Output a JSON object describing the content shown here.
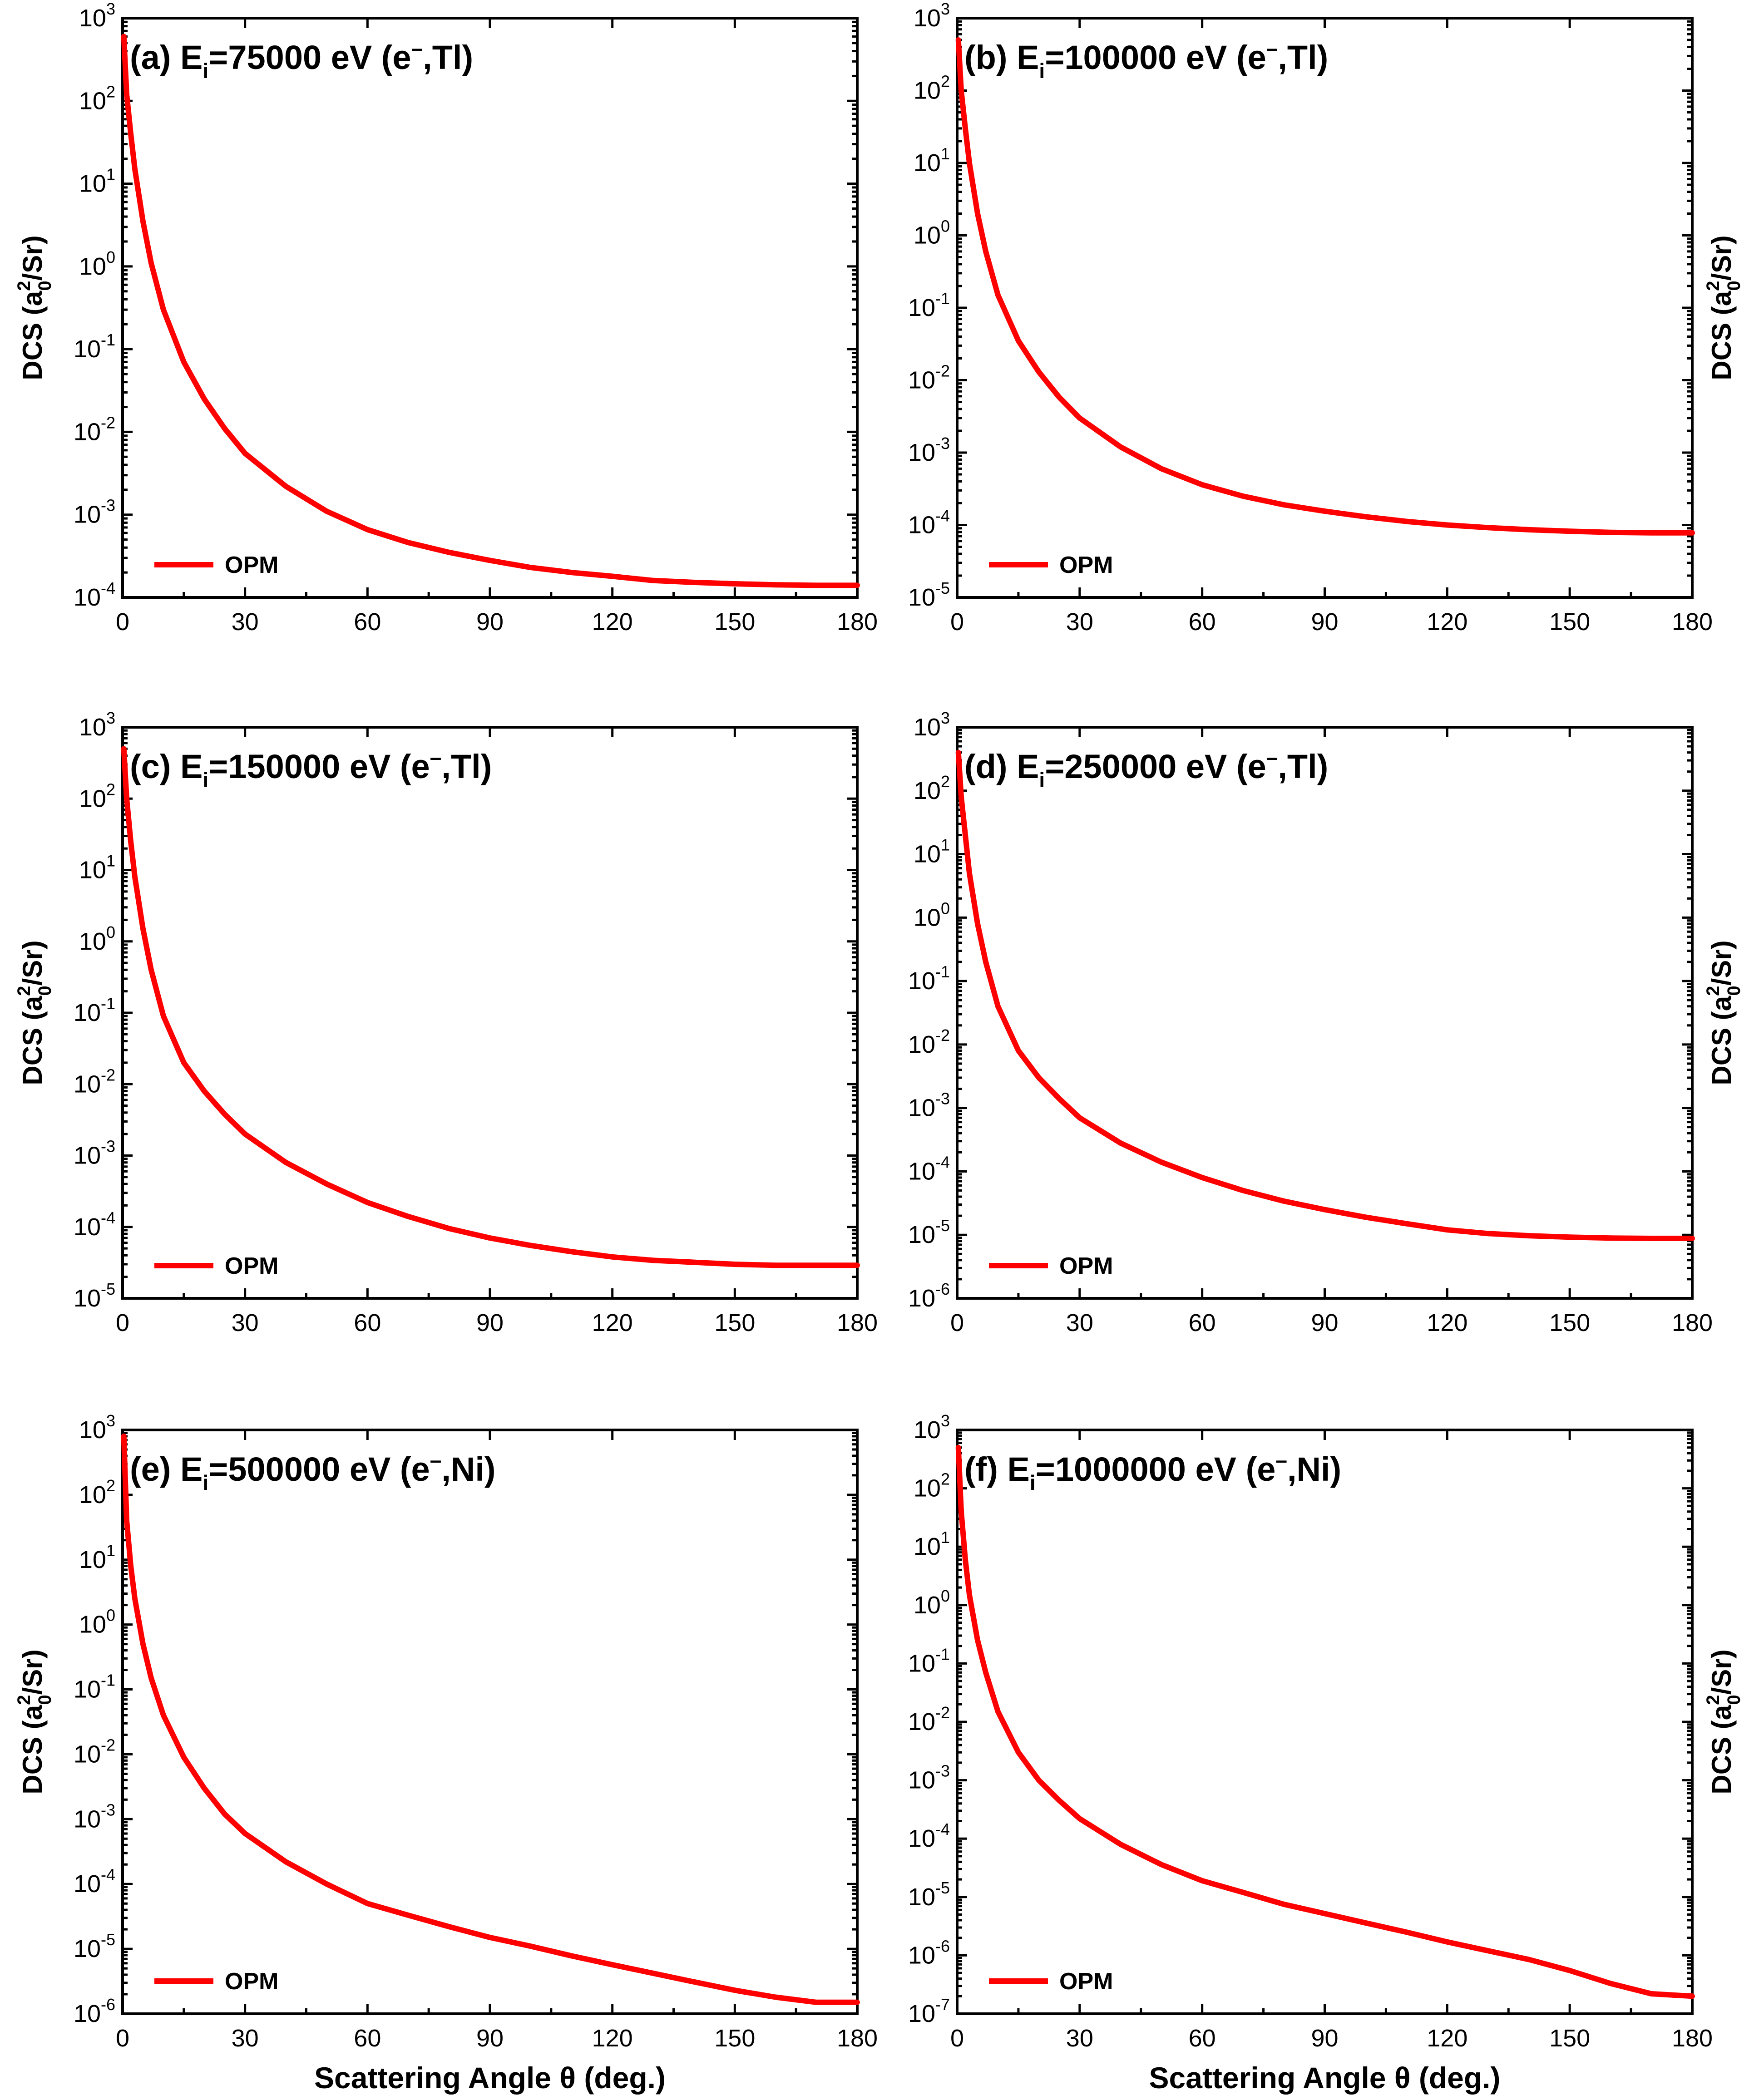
{
  "figure": {
    "x_axis_label": "Scattering Angle θ (deg.)",
    "y_axis_label_main": "DCS (a",
    "y_axis_label_sup": "2",
    "y_axis_label_sub": "0",
    "y_axis_label_tail": "/Sr)",
    "curve_color": "#ff0000"
  },
  "chart_data": [
    {
      "type": "line",
      "panel": "(a)",
      "title_prefix": "(a) E",
      "title_sub": "i",
      "title_mid": "=75000 eV (e",
      "title_sup": "–",
      "title_tail": ",Tl)",
      "xlabel": "",
      "ylabel": "DCS (a0^2/Sr)",
      "xlim": [
        0,
        180
      ],
      "xticks": [
        0,
        30,
        60,
        90,
        120,
        150,
        180
      ],
      "yscale": "log",
      "ylim_exp": [
        -4,
        3
      ],
      "series": [
        {
          "name": "OPM",
          "x": [
            0.3,
            1,
            2,
            3,
            5,
            7,
            10,
            15,
            20,
            25,
            30,
            40,
            50,
            60,
            70,
            80,
            90,
            100,
            110,
            120,
            130,
            140,
            150,
            160,
            170,
            180
          ],
          "y": [
            600,
            120,
            40,
            15,
            3.5,
            1.1,
            0.3,
            0.07,
            0.025,
            0.011,
            0.0055,
            0.0022,
            0.0011,
            0.00066,
            0.00046,
            0.00035,
            0.00028,
            0.00023,
            0.0002,
            0.00018,
            0.00016,
            0.000152,
            0.000146,
            0.000142,
            0.00014,
            0.00014
          ]
        }
      ],
      "legend": "OPM"
    },
    {
      "type": "line",
      "panel": "(b)",
      "title_prefix": "(b) E",
      "title_sub": "i",
      "title_mid": "=100000 eV (e",
      "title_sup": "–",
      "title_tail": ",Tl)",
      "xlabel": "",
      "ylabel": "DCS (a0^2/Sr)",
      "xlim": [
        0,
        180
      ],
      "xticks": [
        0,
        30,
        60,
        90,
        120,
        150,
        180
      ],
      "yscale": "log",
      "ylim_exp": [
        -5,
        3
      ],
      "series": [
        {
          "name": "OPM",
          "x": [
            0.3,
            1,
            2,
            3,
            5,
            7,
            10,
            15,
            20,
            25,
            30,
            40,
            50,
            60,
            70,
            80,
            90,
            100,
            110,
            120,
            130,
            140,
            150,
            160,
            170,
            180
          ],
          "y": [
            500,
            100,
            30,
            10,
            2,
            0.6,
            0.15,
            0.035,
            0.013,
            0.0058,
            0.003,
            0.0012,
            0.0006,
            0.00036,
            0.00025,
            0.00019,
            0.000155,
            0.00013,
            0.000112,
            0.0001,
            9.2e-05,
            8.6e-05,
            8.2e-05,
            7.9e-05,
            7.8e-05,
            7.8e-05
          ]
        }
      ],
      "legend": "OPM"
    },
    {
      "type": "line",
      "panel": "(c)",
      "title_prefix": "(c) E",
      "title_sub": "i",
      "title_mid": "=150000 eV (e",
      "title_sup": "–",
      "title_tail": ",Tl)",
      "xlabel": "",
      "ylabel": "DCS (a0^2/Sr)",
      "xlim": [
        0,
        180
      ],
      "xticks": [
        0,
        30,
        60,
        90,
        120,
        150,
        180
      ],
      "yscale": "log",
      "ylim_exp": [
        -5,
        3
      ],
      "series": [
        {
          "name": "OPM",
          "x": [
            0.3,
            1,
            2,
            3,
            5,
            7,
            10,
            15,
            20,
            25,
            30,
            40,
            50,
            60,
            70,
            80,
            90,
            100,
            110,
            120,
            130,
            140,
            150,
            160,
            170,
            180
          ],
          "y": [
            500,
            100,
            25,
            8,
            1.5,
            0.4,
            0.09,
            0.02,
            0.008,
            0.0038,
            0.002,
            0.0008,
            0.0004,
            0.00022,
            0.00014,
            9.5e-05,
            7e-05,
            5.5e-05,
            4.5e-05,
            3.8e-05,
            3.4e-05,
            3.2e-05,
            3e-05,
            2.9e-05,
            2.9e-05,
            2.9e-05
          ]
        }
      ],
      "legend": "OPM"
    },
    {
      "type": "line",
      "panel": "(d)",
      "title_prefix": "(d) E",
      "title_sub": "i",
      "title_mid": "=250000 eV (e",
      "title_sup": "–",
      "title_tail": ",Tl)",
      "xlabel": "",
      "ylabel": "DCS (a0^2/Sr)",
      "xlim": [
        0,
        180
      ],
      "xticks": [
        0,
        30,
        60,
        90,
        120,
        150,
        180
      ],
      "yscale": "log",
      "ylim_exp": [
        -6,
        3
      ],
      "series": [
        {
          "name": "OPM",
          "x": [
            0.3,
            1,
            2,
            3,
            5,
            7,
            10,
            15,
            20,
            25,
            30,
            40,
            50,
            60,
            70,
            80,
            90,
            100,
            110,
            120,
            130,
            140,
            150,
            160,
            170,
            180
          ],
          "y": [
            400,
            80,
            20,
            5,
            0.8,
            0.2,
            0.04,
            0.008,
            0.003,
            0.0014,
            0.0007,
            0.00028,
            0.00014,
            8e-05,
            5e-05,
            3.4e-05,
            2.5e-05,
            1.9e-05,
            1.5e-05,
            1.2e-05,
            1.05e-05,
            9.7e-06,
            9.2e-06,
            8.9e-06,
            8.8e-06,
            8.8e-06
          ]
        }
      ],
      "legend": "OPM"
    },
    {
      "type": "line",
      "panel": "(e)",
      "title_prefix": "(e) E",
      "title_sub": "i",
      "title_mid": "=500000 eV (e",
      "title_sup": "–",
      "title_tail": ",Ni)",
      "xlabel": "Scattering Angle θ (deg.)",
      "ylabel": "DCS (a0^2/Sr)",
      "xlim": [
        0,
        180
      ],
      "xticks": [
        0,
        30,
        60,
        90,
        120,
        150,
        180
      ],
      "yscale": "log",
      "ylim_exp": [
        -6,
        3
      ],
      "series": [
        {
          "name": "OPM",
          "x": [
            0.3,
            1,
            2,
            3,
            5,
            7,
            10,
            15,
            20,
            25,
            30,
            40,
            50,
            60,
            70,
            80,
            90,
            100,
            110,
            120,
            130,
            140,
            150,
            160,
            170,
            180
          ],
          "y": [
            800,
            40,
            8,
            2.5,
            0.5,
            0.15,
            0.04,
            0.009,
            0.003,
            0.0012,
            0.0006,
            0.00022,
            0.0001,
            5e-05,
            3.3e-05,
            2.2e-05,
            1.5e-05,
            1.1e-05,
            7.8e-06,
            5.7e-06,
            4.2e-06,
            3.1e-06,
            2.3e-06,
            1.8e-06,
            1.5e-06,
            1.5e-06
          ]
        }
      ],
      "legend": "OPM"
    },
    {
      "type": "line",
      "panel": "(f)",
      "title_prefix": "(f) E",
      "title_sub": "i",
      "title_mid": "=1000000 eV (e",
      "title_sup": "–",
      "title_tail": ",Ni)",
      "xlabel": "Scattering Angle θ (deg.)",
      "ylabel": "DCS (a0^2/Sr)",
      "xlim": [
        0,
        180
      ],
      "xticks": [
        0,
        30,
        60,
        90,
        120,
        150,
        180
      ],
      "yscale": "log",
      "ylim_exp": [
        -7,
        3
      ],
      "series": [
        {
          "name": "OPM",
          "x": [
            0.3,
            1,
            2,
            3,
            5,
            7,
            10,
            15,
            20,
            25,
            30,
            40,
            50,
            60,
            70,
            80,
            90,
            100,
            110,
            120,
            130,
            140,
            150,
            160,
            170,
            180
          ],
          "y": [
            500,
            40,
            6,
            1.5,
            0.25,
            0.07,
            0.015,
            0.003,
            0.001,
            0.00045,
            0.00022,
            8e-05,
            3.6e-05,
            1.9e-05,
            1.2e-05,
            7.5e-06,
            5.2e-06,
            3.6e-06,
            2.5e-06,
            1.7e-06,
            1.2e-06,
            8.5e-07,
            5.5e-07,
            3.3e-07,
            2.2e-07,
            2e-07
          ]
        }
      ],
      "legend": "OPM"
    }
  ]
}
